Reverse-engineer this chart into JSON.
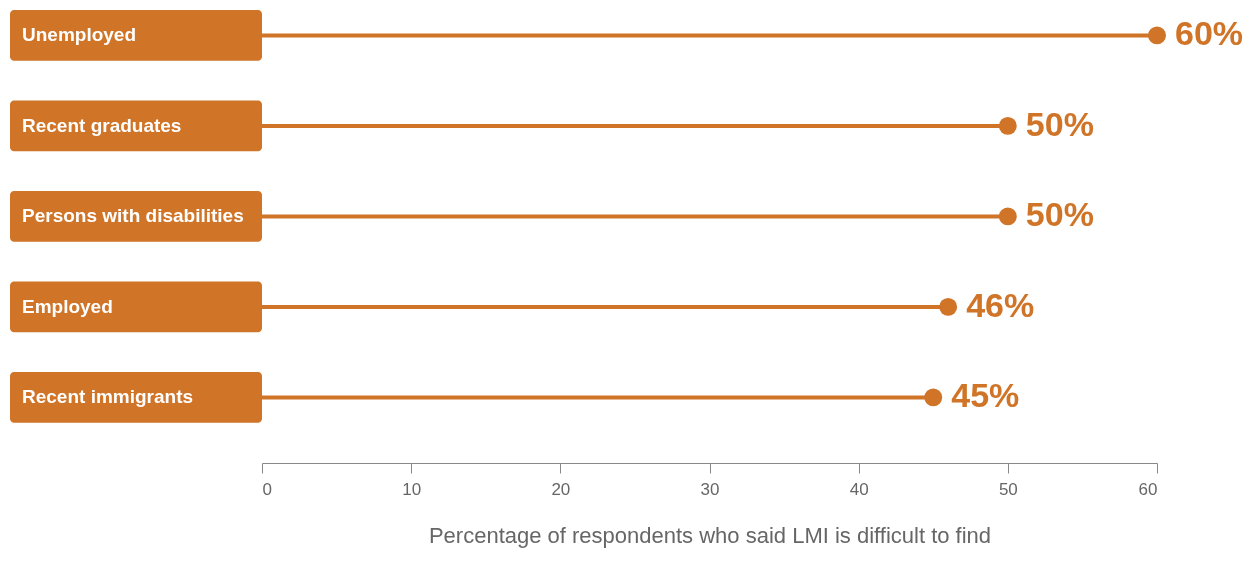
{
  "chart_data": {
    "type": "lollipop",
    "orientation": "horizontal",
    "categories": [
      "Unemployed",
      "Recent graduates",
      "Persons with disabilities",
      "Employed",
      "Recent immigrants"
    ],
    "values": [
      60,
      50,
      50,
      46,
      45
    ],
    "value_labels": [
      "60%",
      "50%",
      "50%",
      "46%",
      "45%"
    ],
    "color": "#d07428",
    "marker": "circle",
    "xlim": [
      0,
      60
    ],
    "xticks": [
      0,
      10,
      20,
      30,
      40,
      50,
      60
    ],
    "xlabel": "Percentage of respondents who said LMI is difficult to find",
    "grid": false
  }
}
